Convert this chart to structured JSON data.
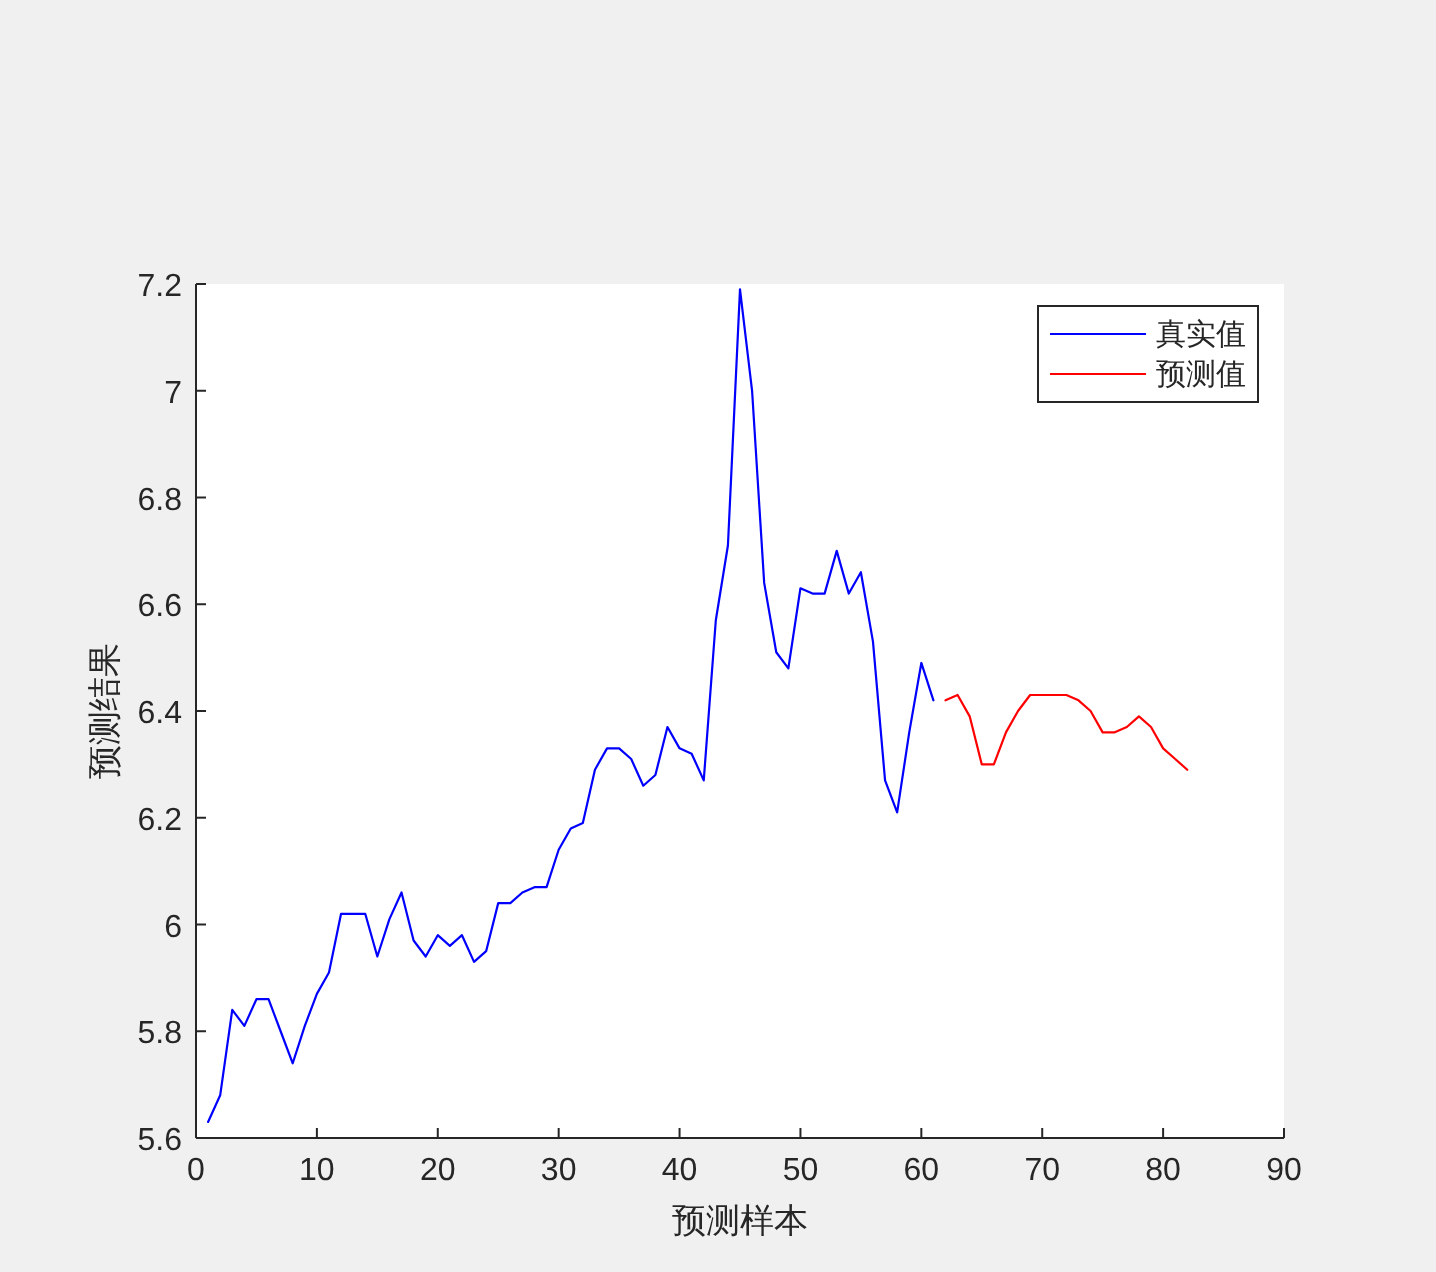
{
  "chart_data": {
    "type": "line",
    "xlabel": "预测样本",
    "ylabel": "预测结果",
    "xlim": [
      0,
      90
    ],
    "ylim": [
      5.6,
      7.2
    ],
    "xticks": [
      0,
      10,
      20,
      30,
      40,
      50,
      60,
      70,
      80,
      90
    ],
    "yticks": [
      5.6,
      5.8,
      6,
      6.2,
      6.4,
      6.6,
      6.8,
      7,
      7.2
    ],
    "grid": false,
    "legend": "top right",
    "series": [
      {
        "name": "真实值",
        "color": "#0000ff",
        "x": [
          1,
          2,
          3,
          4,
          5,
          6,
          7,
          8,
          9,
          10,
          11,
          12,
          13,
          14,
          15,
          16,
          17,
          18,
          19,
          20,
          21,
          22,
          23,
          24,
          25,
          26,
          27,
          28,
          29,
          30,
          31,
          32,
          33,
          34,
          35,
          36,
          37,
          38,
          39,
          40,
          41,
          42,
          43,
          44,
          45,
          46,
          47,
          48,
          49,
          50,
          51,
          52,
          53,
          54,
          55,
          56,
          57,
          58,
          59,
          60,
          61
        ],
        "values": [
          5.63,
          5.68,
          5.84,
          5.81,
          5.86,
          5.86,
          5.8,
          5.74,
          5.81,
          5.87,
          5.91,
          6.02,
          6.02,
          6.02,
          5.94,
          6.01,
          6.06,
          5.97,
          5.94,
          5.98,
          5.96,
          5.98,
          5.93,
          5.95,
          6.04,
          6.04,
          6.06,
          6.07,
          6.07,
          6.14,
          6.18,
          6.19,
          6.29,
          6.33,
          6.33,
          6.31,
          6.26,
          6.28,
          6.37,
          6.33,
          6.32,
          6.27,
          6.57,
          6.71,
          7.19,
          7.0,
          6.64,
          6.51,
          6.48,
          6.63,
          6.62,
          6.62,
          6.7,
          6.62,
          6.66,
          6.53,
          6.27,
          6.21,
          6.36,
          6.49,
          6.42
        ]
      },
      {
        "name": "预测值",
        "color": "#ff0000",
        "x": [
          62,
          63,
          64,
          65,
          66,
          67,
          68,
          69,
          70,
          71,
          72,
          73,
          74,
          75,
          76,
          77,
          78,
          79,
          80,
          81,
          82
        ],
        "values": [
          6.42,
          6.43,
          6.39,
          6.3,
          6.3,
          6.36,
          6.4,
          6.43,
          6.43,
          6.43,
          6.43,
          6.42,
          6.4,
          6.36,
          6.36,
          6.37,
          6.39,
          6.37,
          6.33,
          6.31,
          6.29
        ]
      }
    ]
  }
}
